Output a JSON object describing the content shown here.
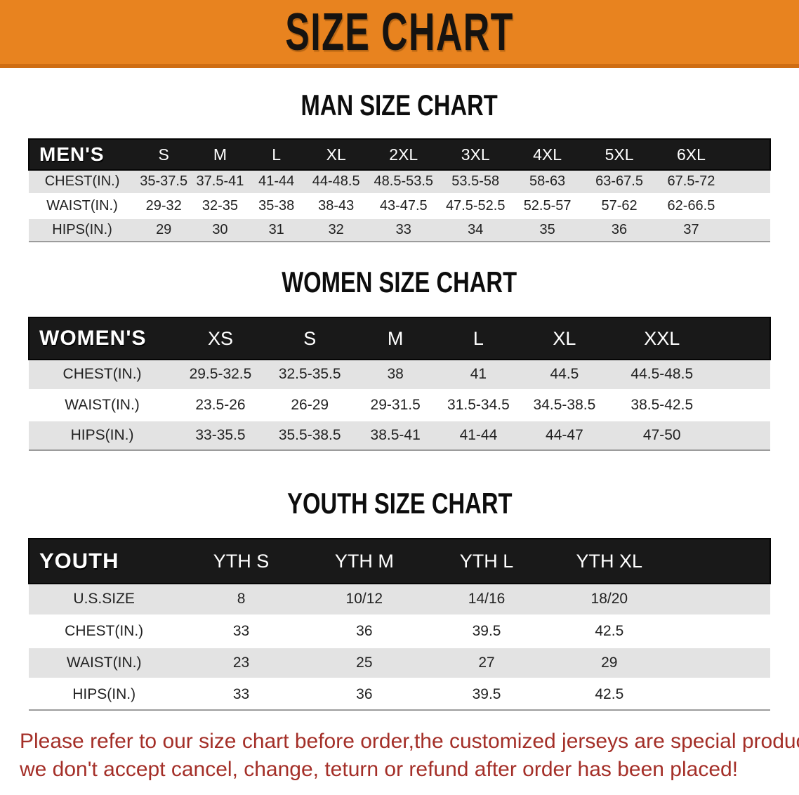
{
  "banner": {
    "title": "SIZE CHART"
  },
  "colors": {
    "banner_orange": "#e8831f",
    "banner_orange_dark": "#cf6d12",
    "table_header_black": "#191919",
    "row_stripe_gray": "#e3e3e3",
    "disclaimer_red": "#a42f28"
  },
  "sections": [
    {
      "heading": "MAN SIZE CHART",
      "table": {
        "label": "MEN'S",
        "columns": [
          "S",
          "M",
          "L",
          "XL",
          "2XL",
          "3XL",
          "4XL",
          "5XL",
          "6XL"
        ],
        "rows": [
          {
            "label": "CHEST(IN.)",
            "values": [
              "35-37.5",
              "37.5-41",
              "41-44",
              "44-48.5",
              "48.5-53.5",
              "53.5-58",
              "58-63",
              "63-67.5",
              "67.5-72"
            ]
          },
          {
            "label": "WAIST(IN.)",
            "values": [
              "29-32",
              "32-35",
              "35-38",
              "38-43",
              "43-47.5",
              "47.5-52.5",
              "52.5-57",
              "57-62",
              "62-66.5"
            ]
          },
          {
            "label": "HIPS(IN.)",
            "values": [
              "29",
              "30",
              "31",
              "32",
              "33",
              "34",
              "35",
              "36",
              "37"
            ]
          }
        ]
      }
    },
    {
      "heading": "WOMEN SIZE CHART",
      "table": {
        "label": "WOMEN'S",
        "columns": [
          "XS",
          "S",
          "M",
          "L",
          "XL",
          "XXL"
        ],
        "rows": [
          {
            "label": "CHEST(IN.)",
            "values": [
              "29.5-32.5",
              "32.5-35.5",
              "38",
              "41",
              "44.5",
              "44.5-48.5"
            ]
          },
          {
            "label": "WAIST(IN.)",
            "values": [
              "23.5-26",
              "26-29",
              "29-31.5",
              "31.5-34.5",
              "34.5-38.5",
              "38.5-42.5"
            ]
          },
          {
            "label": "HIPS(IN.)",
            "values": [
              "33-35.5",
              "35.5-38.5",
              "38.5-41",
              "41-44",
              "44-47",
              "47-50"
            ]
          }
        ]
      }
    },
    {
      "heading": "YOUTH SIZE CHART",
      "table": {
        "label": "YOUTH",
        "columns": [
          "YTH S",
          "YTH M",
          "YTH L",
          "YTH XL"
        ],
        "rows": [
          {
            "label": "U.S.SIZE",
            "values": [
              "8",
              "10/12",
              "14/16",
              "18/20"
            ]
          },
          {
            "label": "CHEST(IN.)",
            "values": [
              "33",
              "36",
              "39.5",
              "42.5"
            ]
          },
          {
            "label": "WAIST(IN.)",
            "values": [
              "23",
              "25",
              "27",
              "29"
            ]
          },
          {
            "label": "HIPS(IN.)",
            "values": [
              "33",
              "36",
              "39.5",
              "42.5"
            ]
          }
        ]
      }
    }
  ],
  "disclaimer": {
    "line1": "Please refer to our size chart before order,the customized jerseys are special products,",
    "line2": "we don't accept cancel, change, teturn or refund after order has been placed!"
  }
}
